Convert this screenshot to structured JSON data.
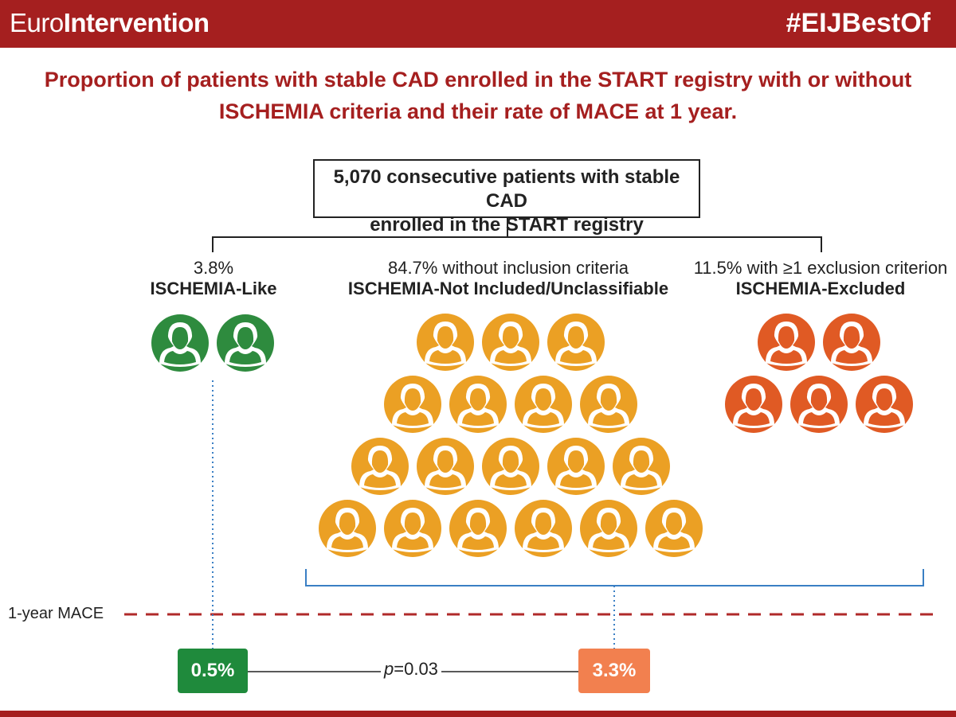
{
  "header": {
    "brand_light": "Euro",
    "brand_bold": "Intervention",
    "hashtag": "#EIJBestOf"
  },
  "title": {
    "line1": "Proportion of patients with stable CAD enrolled in the START registry with or without",
    "line2": "ISCHEMIA criteria and their rate of MACE at 1 year."
  },
  "source": {
    "line1": "5,070 consecutive patients with stable CAD",
    "line2": "enrolled in the START registry"
  },
  "groups": [
    {
      "pct_label": "3.8%",
      "name": "ISCHEMIA-Like",
      "pct": 3.8,
      "color": "#2e8b3e",
      "icon_rows": [
        2
      ]
    },
    {
      "pct_label": "84.7% without inclusion criteria",
      "name": "ISCHEMIA-Not Included/Unclassifiable",
      "pct": 84.7,
      "color": "#eba024",
      "icon_rows": [
        3,
        4,
        5,
        6
      ]
    },
    {
      "pct_label": "11.5% with ≥1 exclusion criterion",
      "name": "ISCHEMIA-Excluded",
      "pct": 11.5,
      "color": "#e05a24",
      "icon_rows": [
        2,
        3
      ]
    }
  ],
  "mace": {
    "label": "1-year MACE",
    "line_color": "#b02a2a",
    "results": [
      {
        "value": "0.5%",
        "color": "#1f8a3c"
      },
      {
        "value": "3.3%",
        "color": "#f2804f"
      }
    ],
    "p_label": "p",
    "p_value": "=0.03",
    "bracket_color": "#3a7fc4"
  }
}
